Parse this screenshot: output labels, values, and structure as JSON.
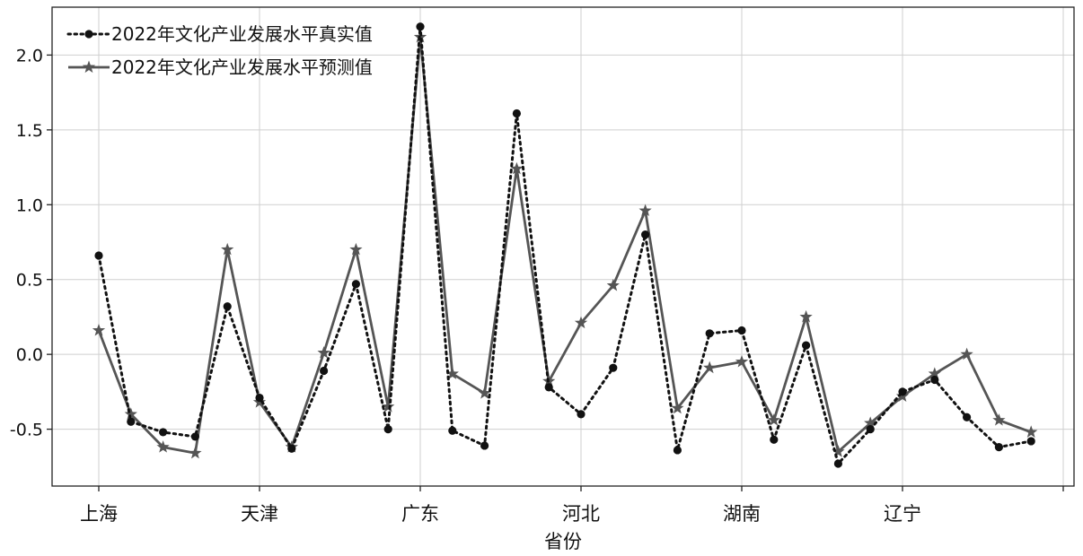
{
  "chart_data": {
    "type": "line",
    "title": "",
    "xlabel": "省份",
    "ylabel": "",
    "ylim": [
      -0.88,
      2.32
    ],
    "yticks": [
      2.0,
      1.5,
      1.0,
      0.5,
      0.0,
      -0.5
    ],
    "ytick_labels": [
      "2.0",
      "1.5",
      "1.0",
      "0.5",
      "0.0",
      "-0.5"
    ],
    "x_label_ticks": [
      {
        "index": 0,
        "label": "上海"
      },
      {
        "index": 5,
        "label": "天津"
      },
      {
        "index": 10,
        "label": "广东"
      },
      {
        "index": 15,
        "label": "河北"
      },
      {
        "index": 20,
        "label": "湖南"
      },
      {
        "index": 25,
        "label": "辽宁"
      }
    ],
    "grid": true,
    "legend_position": "top-left",
    "series": [
      {
        "name": "2022年文化产业发展水平真实值",
        "color": "#111111",
        "style": "dotted",
        "marker": "circle",
        "values": [
          0.66,
          -0.45,
          -0.52,
          -0.55,
          0.32,
          -0.29,
          -0.63,
          -0.11,
          0.47,
          -0.5,
          2.19,
          -0.51,
          -0.61,
          1.61,
          -0.22,
          -0.4,
          -0.09,
          0.8,
          -0.64,
          0.14,
          0.16,
          -0.57,
          0.06,
          -0.73,
          -0.5,
          -0.25,
          -0.17,
          -0.42,
          -0.62,
          -0.58
        ]
      },
      {
        "name": "2022年文化产业发展水平预测值",
        "color": "#555555",
        "style": "solid",
        "marker": "star",
        "values": [
          0.16,
          -0.4,
          -0.62,
          -0.66,
          0.7,
          -0.32,
          -0.62,
          0.01,
          0.7,
          -0.35,
          2.12,
          -0.13,
          -0.26,
          1.24,
          -0.18,
          0.21,
          0.46,
          0.96,
          -0.36,
          -0.09,
          -0.05,
          -0.44,
          0.25,
          -0.65,
          -0.46,
          -0.28,
          -0.13,
          0.0,
          -0.44,
          -0.52
        ]
      }
    ]
  }
}
